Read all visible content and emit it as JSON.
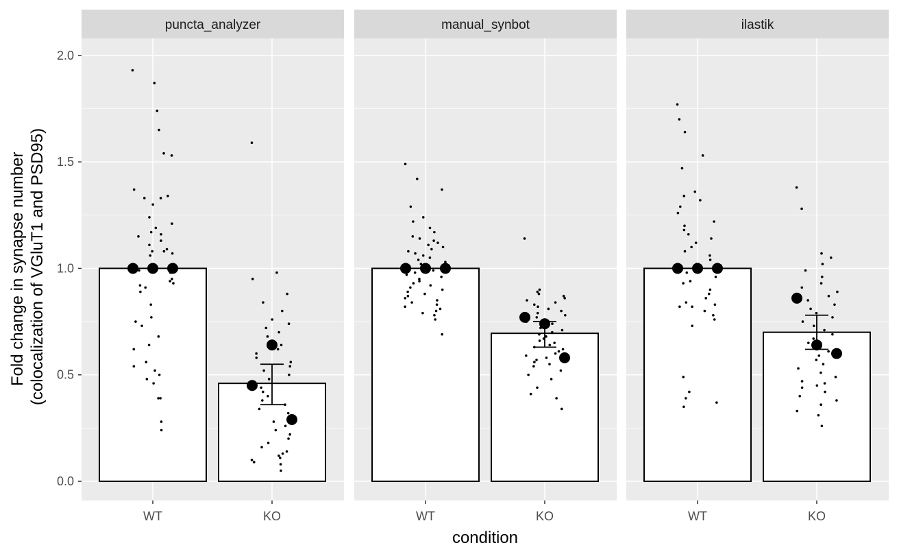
{
  "chart_data": {
    "type": "bar",
    "xlabel": "condition",
    "ylabel_lines": [
      "Fold change in synapse number",
      "(colocalization of VGluT1 and PSD95)"
    ],
    "ylim": [
      -0.09,
      2.08
    ],
    "yticks": [
      0.0,
      0.5,
      1.0,
      1.5,
      2.0
    ],
    "ytick_labels": [
      "0.0",
      "0.5",
      "1.0",
      "1.5",
      "2.0"
    ],
    "categories": [
      "WT",
      "KO"
    ],
    "grid": true,
    "legend": "none",
    "colors": {
      "panel_bg": "#ebebeb",
      "strip_bg": "#d9d9d9",
      "grid": "#ffffff",
      "bar_fill": "#ffffff",
      "bar_stroke": "#000000",
      "points": "#000000"
    },
    "panels": [
      {
        "strip": "puncta_analyzer",
        "bars": [
          {
            "category": "WT",
            "value": 1.0,
            "error": null,
            "means": [
              1.0,
              1.0,
              1.0
            ],
            "points": [
              1.93,
              1.87,
              1.74,
              1.65,
              1.54,
              1.53,
              1.37,
              1.34,
              1.33,
              1.33,
              1.3,
              1.24,
              1.21,
              1.19,
              1.17,
              1.16,
              1.15,
              1.13,
              1.11,
              1.09,
              1.08,
              1.08,
              1.07,
              1.06,
              0.99,
              0.98,
              0.95,
              0.94,
              0.93,
              0.92,
              0.91,
              0.89,
              0.83,
              0.77,
              0.75,
              0.73,
              0.68,
              0.64,
              0.62,
              0.56,
              0.54,
              0.52,
              0.5,
              0.48,
              0.46,
              0.39,
              0.39,
              0.28,
              0.24
            ]
          },
          {
            "category": "KO",
            "value": 0.46,
            "error": [
              0.36,
              0.55
            ],
            "means": [
              0.45,
              0.64,
              0.29
            ],
            "points": [
              1.59,
              0.98,
              0.95,
              0.88,
              0.84,
              0.8,
              0.76,
              0.74,
              0.72,
              0.7,
              0.68,
              0.66,
              0.64,
              0.62,
              0.6,
              0.58,
              0.56,
              0.54,
              0.52,
              0.5,
              0.48,
              0.46,
              0.44,
              0.42,
              0.4,
              0.38,
              0.36,
              0.34,
              0.32,
              0.3,
              0.28,
              0.26,
              0.24,
              0.22,
              0.2,
              0.18,
              0.16,
              0.14,
              0.13,
              0.12,
              0.11,
              0.1,
              0.09,
              0.08,
              0.05
            ]
          }
        ]
      },
      {
        "strip": "manual_synbot",
        "bars": [
          {
            "category": "WT",
            "value": 1.0,
            "error": null,
            "means": [
              1.0,
              1.0,
              1.0
            ],
            "points": [
              1.49,
              1.42,
              1.37,
              1.29,
              1.24,
              1.22,
              1.19,
              1.17,
              1.15,
              1.14,
              1.13,
              1.12,
              1.11,
              1.1,
              1.09,
              1.08,
              1.07,
              1.06,
              1.05,
              1.04,
              1.03,
              1.02,
              1.01,
              0.99,
              0.98,
              0.97,
              0.96,
              0.95,
              0.94,
              0.93,
              0.92,
              0.91,
              0.9,
              0.89,
              0.88,
              0.87,
              0.86,
              0.85,
              0.84,
              0.83,
              0.82,
              0.81,
              0.8,
              0.79,
              0.78,
              0.76,
              0.69
            ]
          },
          {
            "category": "KO",
            "value": 0.695,
            "error": [
              0.63,
              0.75
            ],
            "means": [
              0.77,
              0.74,
              0.58
            ],
            "points": [
              1.14,
              0.9,
              0.89,
              0.88,
              0.87,
              0.86,
              0.85,
              0.84,
              0.83,
              0.82,
              0.81,
              0.8,
              0.79,
              0.78,
              0.77,
              0.76,
              0.75,
              0.74,
              0.73,
              0.72,
              0.71,
              0.7,
              0.69,
              0.68,
              0.67,
              0.66,
              0.65,
              0.64,
              0.63,
              0.62,
              0.61,
              0.6,
              0.59,
              0.58,
              0.57,
              0.56,
              0.55,
              0.54,
              0.52,
              0.5,
              0.48,
              0.44,
              0.41,
              0.39,
              0.34
            ]
          }
        ]
      },
      {
        "strip": "ilastik",
        "bars": [
          {
            "category": "WT",
            "value": 1.0,
            "error": null,
            "means": [
              1.0,
              1.0,
              1.0
            ],
            "points": [
              1.77,
              1.7,
              1.64,
              1.53,
              1.47,
              1.36,
              1.34,
              1.32,
              1.29,
              1.26,
              1.22,
              1.2,
              1.18,
              1.16,
              1.14,
              1.12,
              1.1,
              1.08,
              1.06,
              1.04,
              1.02,
              1.0,
              0.98,
              0.96,
              0.94,
              0.93,
              0.9,
              0.88,
              0.86,
              0.84,
              0.83,
              0.82,
              0.82,
              0.8,
              0.78,
              0.76,
              0.73,
              0.49,
              0.42,
              0.39,
              0.37,
              0.35
            ]
          },
          {
            "category": "KO",
            "value": 0.7,
            "error": [
              0.62,
              0.78
            ],
            "means": [
              0.86,
              0.64,
              0.6
            ],
            "points": [
              1.38,
              1.28,
              1.07,
              1.05,
              1.02,
              0.99,
              0.96,
              0.93,
              0.91,
              0.89,
              0.87,
              0.85,
              0.83,
              0.81,
              0.79,
              0.77,
              0.75,
              0.73,
              0.71,
              0.69,
              0.67,
              0.65,
              0.63,
              0.61,
              0.59,
              0.57,
              0.55,
              0.53,
              0.51,
              0.49,
              0.47,
              0.46,
              0.45,
              0.44,
              0.42,
              0.4,
              0.38,
              0.36,
              0.33,
              0.31,
              0.26
            ]
          }
        ]
      }
    ]
  }
}
